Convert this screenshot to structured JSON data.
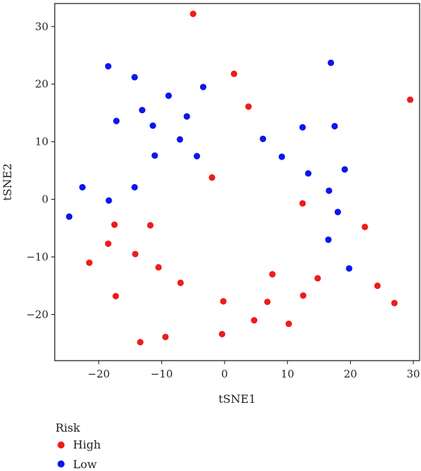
{
  "chart_data": {
    "type": "scatter",
    "title": "",
    "xlabel": "tSNE1",
    "ylabel": "tSNE2",
    "xlim": [
      -27,
      31
    ],
    "ylim": [
      -28,
      34
    ],
    "xticks": [
      -20,
      -10,
      0,
      10,
      20,
      30
    ],
    "yticks": [
      -20,
      -10,
      0,
      10,
      20,
      30
    ],
    "xtick_labels": [
      "−20",
      "−10",
      "0",
      "10",
      "20",
      "30"
    ],
    "ytick_labels": [
      "−20",
      "−10",
      "0",
      "10",
      "20",
      "30"
    ],
    "grid": false,
    "legend": {
      "title": "Risk",
      "placement": "bottom-left"
    },
    "series": [
      {
        "name": "High",
        "color": "#ee1c1c",
        "points": [
          [
            -5,
            32.2
          ],
          [
            1.5,
            21.8
          ],
          [
            3.8,
            16.1
          ],
          [
            29.5,
            17.3
          ],
          [
            -2,
            3.8
          ],
          [
            12.4,
            -0.7
          ],
          [
            22.3,
            -4.8
          ],
          [
            -17.5,
            -4.4
          ],
          [
            -11.8,
            -4.5
          ],
          [
            -18.5,
            -7.7
          ],
          [
            -14.2,
            -9.5
          ],
          [
            -21.5,
            -11
          ],
          [
            -10.5,
            -11.8
          ],
          [
            7.6,
            -13
          ],
          [
            14.8,
            -13.7
          ],
          [
            -7,
            -14.5
          ],
          [
            -17.3,
            -16.8
          ],
          [
            24.3,
            -15
          ],
          [
            12.5,
            -16.7
          ],
          [
            27,
            -18
          ],
          [
            -0.2,
            -17.7
          ],
          [
            6.8,
            -17.8
          ],
          [
            4.7,
            -21
          ],
          [
            10.2,
            -21.6
          ],
          [
            -0.4,
            -23.4
          ],
          [
            -9.4,
            -23.9
          ],
          [
            -13.4,
            -24.8
          ]
        ]
      },
      {
        "name": "Low",
        "color": "#0c16f0",
        "points": [
          [
            -18.5,
            23.1
          ],
          [
            -14.3,
            21.2
          ],
          [
            16.9,
            23.7
          ],
          [
            -3.4,
            19.5
          ],
          [
            -8.9,
            18
          ],
          [
            -13.1,
            15.5
          ],
          [
            -6,
            14.4
          ],
          [
            -17.2,
            13.6
          ],
          [
            -11.4,
            12.8
          ],
          [
            12.4,
            12.5
          ],
          [
            17.5,
            12.7
          ],
          [
            -7.1,
            10.4
          ],
          [
            6.1,
            10.5
          ],
          [
            -11.1,
            7.6
          ],
          [
            -4.4,
            7.5
          ],
          [
            9.1,
            7.4
          ],
          [
            13.3,
            4.5
          ],
          [
            19.1,
            5.2
          ],
          [
            -22.6,
            2.1
          ],
          [
            -14.3,
            2.1
          ],
          [
            16.6,
            1.5
          ],
          [
            -18.4,
            -0.2
          ],
          [
            18,
            -2.2
          ],
          [
            -24.7,
            -3
          ],
          [
            16.5,
            -7
          ],
          [
            19.8,
            -12
          ]
        ]
      }
    ]
  }
}
